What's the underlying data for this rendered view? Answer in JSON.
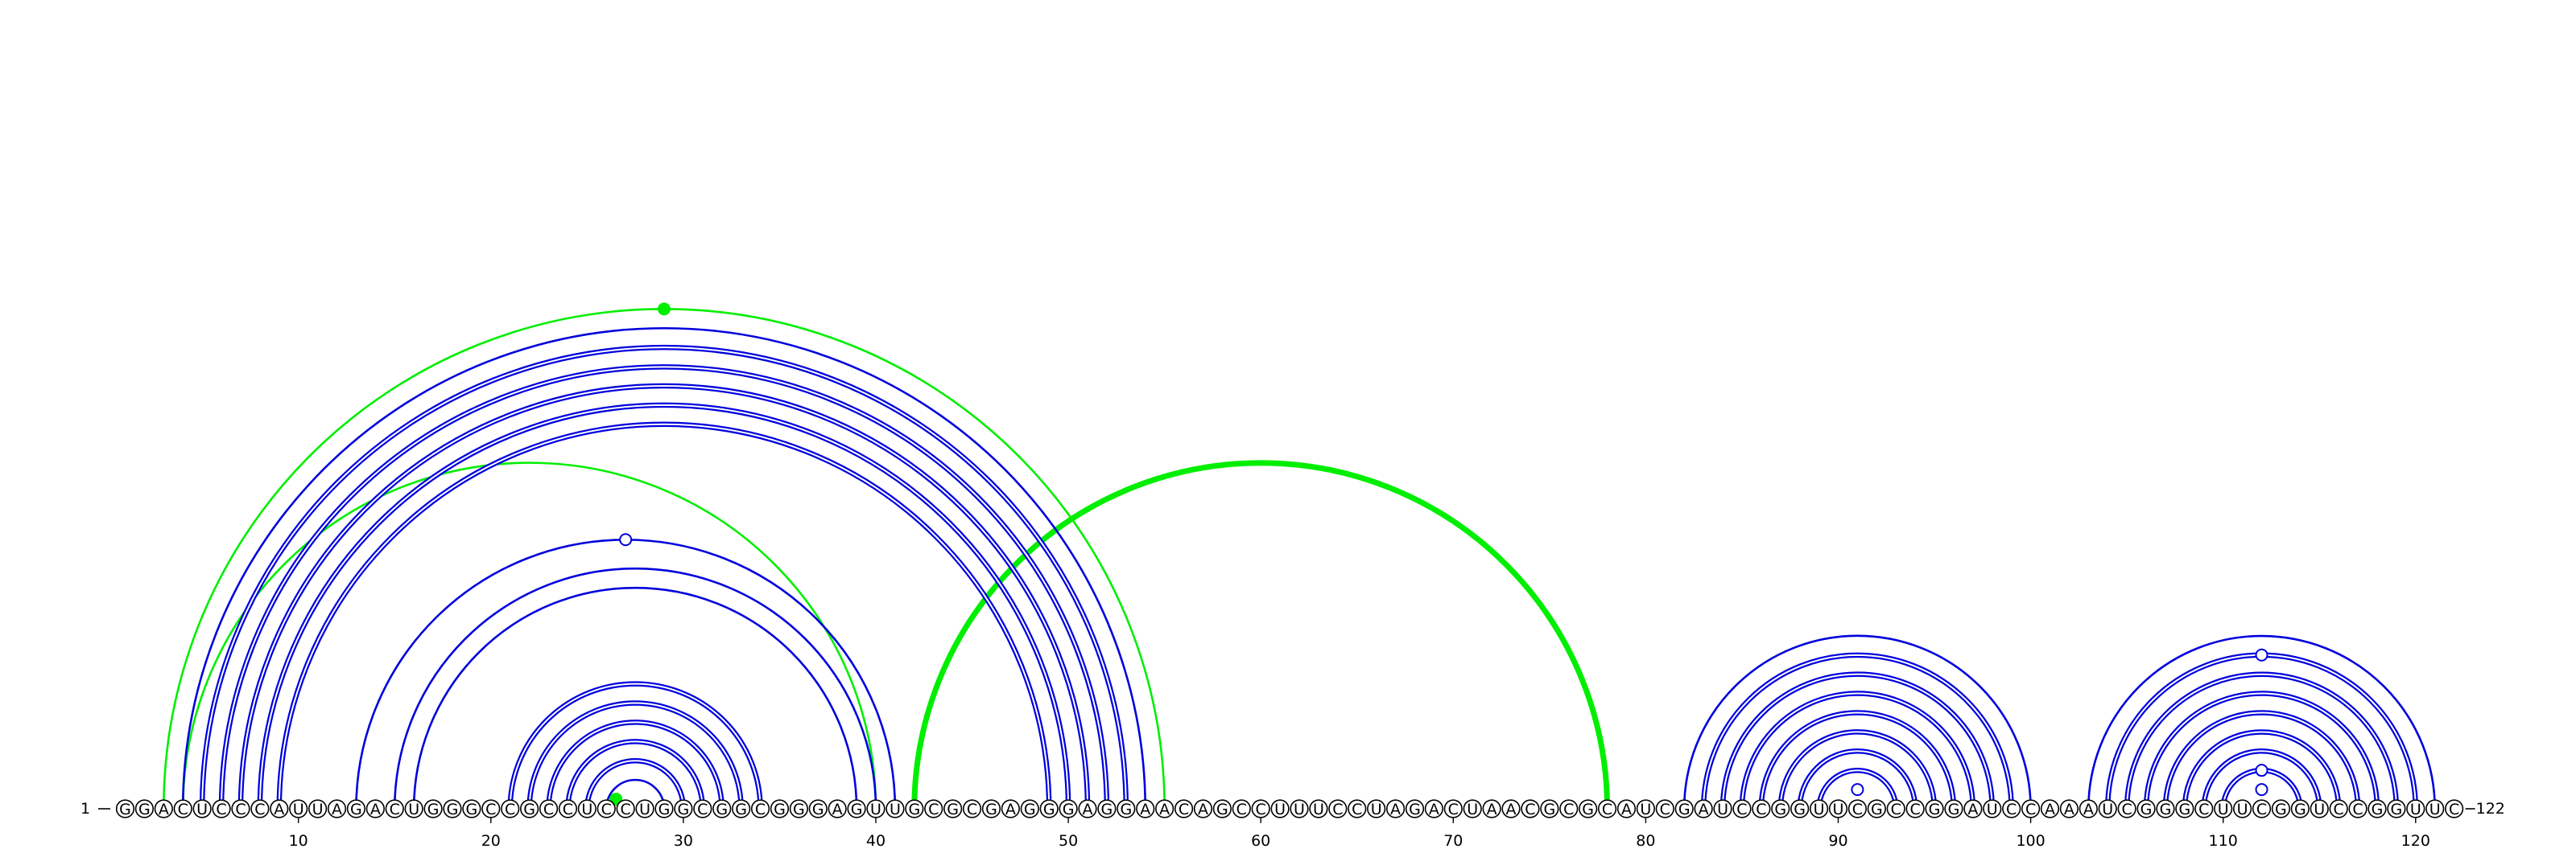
{
  "sequence": "GGACUCCCAUUAGACUGGGCCGCCUCCUGGCGGCGGGAGUUGCGCGAGGGAGGAACAGCCUUUCCUAGACUAACGCGCAUCGAUCCGGUUCGCCGGAUCCAAAUCGGGCUUCGGUCCGGUUC",
  "labels": {
    "start": "1",
    "end": "122"
  },
  "ticks": [
    "10",
    "20",
    "30",
    "40",
    "50",
    "60",
    "70",
    "80",
    "90",
    "100",
    "110",
    "120"
  ],
  "colors": {
    "canonical": "#0000dd",
    "non_canonical": "#00ee00"
  },
  "arcs": {
    "blue_double": [
      [
        5,
        53
      ],
      [
        6,
        52
      ],
      [
        7,
        51
      ],
      [
        8,
        50
      ],
      [
        9,
        49
      ],
      [
        21,
        34
      ],
      [
        22,
        33
      ],
      [
        23,
        32
      ],
      [
        24,
        31
      ],
      [
        25,
        30
      ],
      [
        83,
        99
      ],
      [
        84,
        98
      ],
      [
        85,
        97
      ],
      [
        86,
        96
      ],
      [
        87,
        95
      ],
      [
        88,
        94
      ],
      [
        89,
        93
      ],
      [
        104,
        120
      ],
      [
        105,
        119
      ],
      [
        106,
        118
      ],
      [
        107,
        117
      ],
      [
        108,
        116
      ],
      [
        109,
        115
      ],
      [
        110,
        114
      ]
    ],
    "blue_single": [
      [
        4,
        54
      ],
      [
        13,
        41
      ],
      [
        15,
        40
      ],
      [
        16,
        39
      ],
      [
        26,
        29
      ],
      [
        82,
        100
      ],
      [
        103,
        121
      ]
    ],
    "green_thin": [
      [
        3,
        55
      ],
      [
        4,
        40
      ],
      [
        26,
        27
      ]
    ],
    "green_thick": [
      [
        42,
        78
      ]
    ]
  },
  "markers": {
    "open": [
      {
        "i": 13,
        "j": 41
      },
      {
        "i": 90,
        "j": 92
      },
      {
        "i": 104,
        "j": 120
      },
      {
        "i": 110,
        "j": 114
      },
      {
        "i": 111,
        "j": 113
      }
    ],
    "filled": [
      {
        "i": 3,
        "j": 55
      },
      {
        "i": 26,
        "j": 27
      }
    ]
  }
}
